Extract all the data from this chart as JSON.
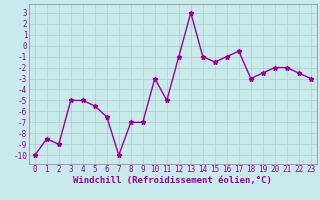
{
  "x": [
    0,
    1,
    2,
    3,
    4,
    5,
    6,
    7,
    8,
    9,
    10,
    11,
    12,
    13,
    14,
    15,
    16,
    17,
    18,
    19,
    20,
    21,
    22,
    23
  ],
  "y": [
    -10,
    -8.5,
    -9,
    -5,
    -5,
    -5.5,
    -6.5,
    -10,
    -7,
    -7,
    -3,
    -5,
    -1,
    3,
    -1,
    -1.5,
    -1,
    -0.5,
    -3,
    -2.5,
    -2,
    -2,
    -2.5,
    -3
  ],
  "line_color": "#990099",
  "marker": "*",
  "marker_color": "#990099",
  "bg_color": "#c8eaea",
  "grid_color": "#b0c8c8",
  "xlabel": "Windchill (Refroidissement éolien,°C)",
  "xlabel_color": "#990099",
  "ytick_labels": [
    "3",
    "2",
    "1",
    "0",
    "-1",
    "-2",
    "-3",
    "-4",
    "-5",
    "-6",
    "-7",
    "-8",
    "-9",
    "-10"
  ],
  "ytick_vals": [
    3,
    2,
    1,
    0,
    -1,
    -2,
    -3,
    -4,
    -5,
    -6,
    -7,
    -8,
    -9,
    -10
  ],
  "xticks": [
    0,
    1,
    2,
    3,
    4,
    5,
    6,
    7,
    8,
    9,
    10,
    11,
    12,
    13,
    14,
    15,
    16,
    17,
    18,
    19,
    20,
    21,
    22,
    23
  ],
  "xlim": [
    -0.5,
    23.5
  ],
  "ylim": [
    -10.8,
    3.8
  ],
  "tick_label_color": "#990099",
  "tick_label_size": 5.5,
  "xlabel_size": 6.5,
  "linewidth": 1.0,
  "markersize": 3.5
}
